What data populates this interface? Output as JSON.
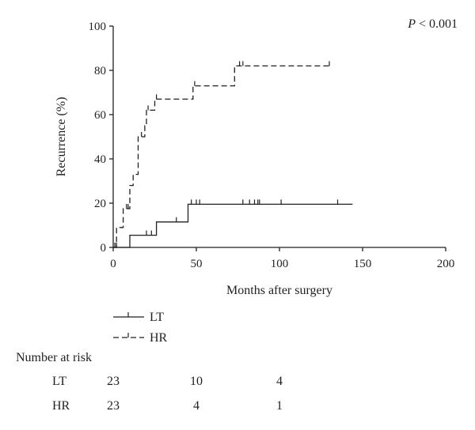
{
  "chart_data": {
    "type": "line",
    "subtype": "kaplan-meier-cumulative-incidence",
    "xlabel": "Months after surgery",
    "ylabel": "Recurrence (%)",
    "xlim": [
      0,
      200
    ],
    "ylim": [
      0,
      100
    ],
    "x_ticks": [
      "0",
      "50",
      "100",
      "150",
      "200"
    ],
    "y_ticks": [
      "0",
      "20",
      "40",
      "60",
      "80",
      "100"
    ],
    "grid": false,
    "annotation": {
      "italic": "P",
      "text": " < 0.001"
    },
    "series": [
      {
        "name": "LT",
        "line_style": "solid",
        "steps": [
          [
            0,
            0
          ],
          [
            10,
            5.5
          ],
          [
            26,
            11.5
          ],
          [
            45,
            19.5
          ],
          [
            144,
            19.5
          ]
        ],
        "censored": [
          [
            1,
            0
          ],
          [
            2,
            0
          ],
          [
            20,
            5.5
          ],
          [
            23,
            5.5
          ],
          [
            38,
            11.5
          ],
          [
            47,
            19.5
          ],
          [
            50,
            19.5
          ],
          [
            52,
            19.5
          ],
          [
            78,
            19.5
          ],
          [
            82,
            19.5
          ],
          [
            85,
            19.5
          ],
          [
            87,
            19.5
          ],
          [
            88,
            19.5
          ],
          [
            101,
            19.5
          ],
          [
            135,
            19.5
          ]
        ]
      },
      {
        "name": "HR",
        "line_style": "dashed",
        "steps": [
          [
            0,
            0
          ],
          [
            2,
            9
          ],
          [
            6,
            17.5
          ],
          [
            10,
            28
          ],
          [
            12,
            33
          ],
          [
            15,
            50
          ],
          [
            19,
            55
          ],
          [
            20,
            62
          ],
          [
            25,
            67
          ],
          [
            48,
            73
          ],
          [
            73,
            82
          ],
          [
            130,
            82
          ]
        ],
        "censored": [
          [
            1,
            0
          ],
          [
            8,
            17.5
          ],
          [
            9,
            17.5
          ],
          [
            17,
            50
          ],
          [
            21,
            62
          ],
          [
            26,
            67
          ],
          [
            49,
            73
          ],
          [
            76,
            82
          ],
          [
            78,
            82
          ],
          [
            130,
            82
          ]
        ]
      }
    ],
    "legend": {
      "placement": "bottom-left",
      "entries": [
        "LT",
        "HR"
      ]
    },
    "risk_table": {
      "title": "Number at risk",
      "time_points": [
        0,
        50,
        100
      ],
      "rows": [
        {
          "label": "LT",
          "values": [
            "23",
            "10",
            "4"
          ]
        },
        {
          "label": "HR",
          "values": [
            "23",
            "4",
            "1"
          ]
        }
      ]
    }
  }
}
